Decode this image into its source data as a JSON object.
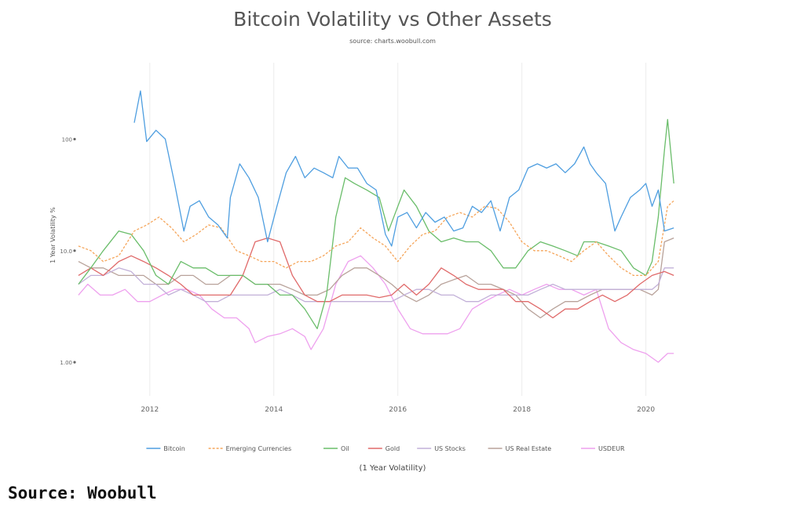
{
  "caption": "Source: Woobull",
  "chart_data": {
    "type": "line",
    "title": "Bitcoin Volatility vs Other Assets",
    "subtitle": "source: charts.woobull.com",
    "ylabel": "1 Year Volatility %",
    "xlabel": "(1 Year Volatility)",
    "y_scale": "log",
    "ylim": [
      0.5,
      350
    ],
    "xlim": [
      2010.8,
      2020.6
    ],
    "yticks": [
      1,
      10,
      100
    ],
    "ytick_labels": [
      "1.00",
      "10.0",
      "100"
    ],
    "xticks": [
      2012,
      2014,
      2016,
      2018,
      2020
    ],
    "xtick_labels": [
      "2012",
      "2014",
      "2016",
      "2018",
      "2020"
    ],
    "grid": "vertical",
    "legend_position": "bottom",
    "series": [
      {
        "name": "Bitcoin",
        "color": "#4e9ee0",
        "dash": "solid",
        "x": [
          2011.75,
          2011.85,
          2011.95,
          2012.1,
          2012.25,
          2012.4,
          2012.55,
          2012.65,
          2012.8,
          2012.95,
          2013.1,
          2013.25,
          2013.3,
          2013.45,
          2013.6,
          2013.75,
          2013.9,
          2014.05,
          2014.2,
          2014.35,
          2014.5,
          2014.65,
          2014.8,
          2014.95,
          2015.05,
          2015.2,
          2015.35,
          2015.5,
          2015.65,
          2015.8,
          2015.9,
          2016.0,
          2016.15,
          2016.3,
          2016.45,
          2016.6,
          2016.75,
          2016.9,
          2017.05,
          2017.2,
          2017.35,
          2017.5,
          2017.65,
          2017.8,
          2017.95,
          2018.1,
          2018.25,
          2018.4,
          2018.55,
          2018.7,
          2018.85,
          2019.0,
          2019.1,
          2019.2,
          2019.35,
          2019.5,
          2019.6,
          2019.75,
          2019.9,
          2020.0,
          2020.1,
          2020.2,
          2020.3,
          2020.45
        ],
        "values": [
          140,
          270,
          95,
          120,
          100,
          40,
          15,
          25,
          28,
          20,
          17,
          13,
          30,
          60,
          45,
          30,
          12,
          25,
          50,
          70,
          45,
          55,
          50,
          45,
          70,
          55,
          55,
          40,
          35,
          14,
          11,
          20,
          22,
          16,
          22,
          18,
          20,
          15,
          16,
          25,
          22,
          28,
          15,
          30,
          35,
          55,
          60,
          55,
          60,
          50,
          60,
          85,
          60,
          50,
          40,
          15,
          20,
          30,
          35,
          40,
          25,
          35,
          15,
          16
        ]
      },
      {
        "name": "Emerging Currencies",
        "color": "#f5a55a",
        "dash": "dashed",
        "x": [
          2010.85,
          2011.05,
          2011.25,
          2011.5,
          2011.75,
          2011.95,
          2012.15,
          2012.35,
          2012.55,
          2012.75,
          2012.95,
          2013.15,
          2013.4,
          2013.6,
          2013.8,
          2014.0,
          2014.2,
          2014.4,
          2014.6,
          2014.8,
          2015.0,
          2015.2,
          2015.4,
          2015.6,
          2015.8,
          2016.0,
          2016.2,
          2016.4,
          2016.6,
          2016.8,
          2017.0,
          2017.2,
          2017.4,
          2017.6,
          2017.8,
          2018.0,
          2018.2,
          2018.4,
          2018.6,
          2018.8,
          2019.0,
          2019.2,
          2019.4,
          2019.6,
          2019.8,
          2020.0,
          2020.2,
          2020.35,
          2020.45
        ],
        "values": [
          11,
          10,
          8,
          9,
          15,
          17,
          20,
          16,
          12,
          14,
          17,
          16,
          10,
          9,
          8,
          8,
          7,
          8,
          8,
          9,
          11,
          12,
          16,
          13,
          11,
          8,
          11,
          14,
          15,
          20,
          22,
          20,
          25,
          24,
          18,
          12,
          10,
          10,
          9,
          8,
          10,
          12,
          9,
          7,
          6,
          6,
          8,
          25,
          28
        ]
      },
      {
        "name": "Oil",
        "color": "#6abd6a",
        "dash": "solid",
        "x": [
          2010.85,
          2011.05,
          2011.25,
          2011.5,
          2011.7,
          2011.9,
          2012.1,
          2012.3,
          2012.5,
          2012.7,
          2012.9,
          2013.1,
          2013.3,
          2013.5,
          2013.7,
          2013.9,
          2014.1,
          2014.3,
          2014.5,
          2014.7,
          2014.85,
          2015.0,
          2015.15,
          2015.3,
          2015.5,
          2015.7,
          2015.85,
          2016.0,
          2016.1,
          2016.3,
          2016.5,
          2016.7,
          2016.9,
          2017.1,
          2017.3,
          2017.5,
          2017.7,
          2017.9,
          2018.1,
          2018.3,
          2018.5,
          2018.7,
          2018.9,
          2019.0,
          2019.2,
          2019.4,
          2019.6,
          2019.8,
          2020.0,
          2020.1,
          2020.2,
          2020.3,
          2020.35,
          2020.45
        ],
        "values": [
          5,
          7,
          10,
          15,
          14,
          10,
          6,
          5,
          8,
          7,
          7,
          6,
          6,
          6,
          5,
          5,
          4,
          4,
          3,
          2,
          4,
          20,
          45,
          40,
          35,
          30,
          15,
          25,
          35,
          25,
          15,
          12,
          13,
          12,
          12,
          10,
          7,
          7,
          10,
          12,
          11,
          10,
          9,
          12,
          12,
          11,
          10,
          7,
          6,
          8,
          20,
          80,
          150,
          40
        ]
      },
      {
        "name": "Gold",
        "color": "#e06a6a",
        "dash": "solid",
        "x": [
          2010.85,
          2011.05,
          2011.25,
          2011.5,
          2011.7,
          2011.9,
          2012.1,
          2012.3,
          2012.5,
          2012.7,
          2012.9,
          2013.1,
          2013.3,
          2013.5,
          2013.7,
          2013.9,
          2014.1,
          2014.3,
          2014.5,
          2014.7,
          2014.9,
          2015.1,
          2015.3,
          2015.5,
          2015.7,
          2015.9,
          2016.1,
          2016.3,
          2016.5,
          2016.7,
          2016.9,
          2017.1,
          2017.3,
          2017.5,
          2017.7,
          2017.9,
          2018.1,
          2018.3,
          2018.5,
          2018.7,
          2018.9,
          2019.1,
          2019.3,
          2019.5,
          2019.7,
          2019.9,
          2020.1,
          2020.3,
          2020.45
        ],
        "values": [
          6,
          7,
          6,
          8,
          9,
          8,
          7,
          6,
          5,
          4,
          4,
          4,
          4,
          6,
          12,
          13,
          12,
          6,
          4,
          3.5,
          3.5,
          4,
          4,
          4,
          3.8,
          4,
          5,
          4,
          5,
          7,
          6,
          5,
          4.5,
          4.5,
          4.5,
          3.5,
          3.5,
          3,
          2.5,
          3,
          3,
          3.5,
          4,
          3.5,
          4,
          5,
          6,
          6.5,
          6
        ]
      },
      {
        "name": "US Stocks",
        "color": "#c2b0d8",
        "dash": "solid",
        "x": [
          2010.85,
          2011.05,
          2011.25,
          2011.5,
          2011.7,
          2011.9,
          2012.1,
          2012.3,
          2012.5,
          2012.7,
          2012.9,
          2013.1,
          2013.3,
          2013.5,
          2013.7,
          2013.9,
          2014.1,
          2014.3,
          2014.5,
          2014.7,
          2014.9,
          2015.1,
          2015.3,
          2015.5,
          2015.7,
          2015.9,
          2016.1,
          2016.3,
          2016.5,
          2016.7,
          2016.9,
          2017.1,
          2017.3,
          2017.5,
          2017.7,
          2017.9,
          2018.1,
          2018.3,
          2018.5,
          2018.7,
          2018.9,
          2019.1,
          2019.3,
          2019.5,
          2019.7,
          2019.9,
          2020.1,
          2020.2,
          2020.3,
          2020.45
        ],
        "values": [
          5,
          6,
          6,
          7,
          6.5,
          5,
          5,
          4,
          4.5,
          4,
          3.5,
          3.5,
          4,
          4,
          4,
          4,
          4.5,
          4,
          3.5,
          3.5,
          3.5,
          3.5,
          3.5,
          3.5,
          3.5,
          3.5,
          4,
          4.5,
          4.5,
          4,
          4,
          3.5,
          3.5,
          4,
          4,
          4,
          4,
          4.5,
          5,
          4.5,
          4.5,
          4.5,
          4.5,
          4.5,
          4.5,
          4.5,
          4.5,
          5,
          7,
          7
        ]
      },
      {
        "name": "US Real Estate",
        "color": "#b8a29a",
        "dash": "solid",
        "x": [
          2010.85,
          2011.05,
          2011.25,
          2011.5,
          2011.7,
          2011.9,
          2012.1,
          2012.3,
          2012.5,
          2012.7,
          2012.9,
          2013.1,
          2013.3,
          2013.5,
          2013.7,
          2013.9,
          2014.1,
          2014.3,
          2014.5,
          2014.7,
          2014.9,
          2015.1,
          2015.3,
          2015.5,
          2015.7,
          2015.9,
          2016.1,
          2016.3,
          2016.5,
          2016.7,
          2016.9,
          2017.1,
          2017.3,
          2017.5,
          2017.7,
          2017.9,
          2018.1,
          2018.3,
          2018.5,
          2018.7,
          2018.9,
          2019.1,
          2019.3,
          2019.5,
          2019.7,
          2019.9,
          2020.1,
          2020.2,
          2020.3,
          2020.45
        ],
        "values": [
          8,
          7,
          7,
          6,
          6,
          6,
          5,
          5,
          6,
          6,
          5,
          5,
          6,
          6,
          5,
          5,
          5,
          4.5,
          4,
          4,
          4.5,
          6,
          7,
          7,
          6,
          5,
          4,
          3.5,
          4,
          5,
          5.5,
          6,
          5,
          5,
          4.5,
          4,
          3,
          2.5,
          3,
          3.5,
          3.5,
          4,
          4.5,
          4.5,
          4.5,
          4.5,
          4,
          4.5,
          12,
          13
        ]
      },
      {
        "name": "USDEUR",
        "color": "#eea0ee",
        "dash": "solid",
        "x": [
          2010.85,
          2011.0,
          2011.2,
          2011.4,
          2011.6,
          2011.8,
          2012.0,
          2012.2,
          2012.4,
          2012.6,
          2012.8,
          2013.0,
          2013.2,
          2013.4,
          2013.6,
          2013.7,
          2013.9,
          2014.1,
          2014.3,
          2014.5,
          2014.6,
          2014.8,
          2015.0,
          2015.2,
          2015.4,
          2015.6,
          2015.8,
          2016.0,
          2016.2,
          2016.4,
          2016.6,
          2016.8,
          2017.0,
          2017.2,
          2017.4,
          2017.6,
          2017.8,
          2018.0,
          2018.2,
          2018.4,
          2018.6,
          2018.8,
          2019.0,
          2019.2,
          2019.4,
          2019.6,
          2019.8,
          2020.0,
          2020.2,
          2020.35,
          2020.45
        ],
        "values": [
          4,
          5,
          4,
          4,
          4.5,
          3.5,
          3.5,
          4,
          4.5,
          4.5,
          4,
          3,
          2.5,
          2.5,
          2,
          1.5,
          1.7,
          1.8,
          2,
          1.7,
          1.3,
          2,
          5,
          8,
          9,
          7,
          5,
          3,
          2,
          1.8,
          1.8,
          1.8,
          2,
          3,
          3.5,
          4,
          4.5,
          4,
          4.5,
          5,
          4.5,
          4.5,
          4,
          4.5,
          2,
          1.5,
          1.3,
          1.2,
          1.0,
          1.2,
          1.2
        ]
      }
    ]
  }
}
